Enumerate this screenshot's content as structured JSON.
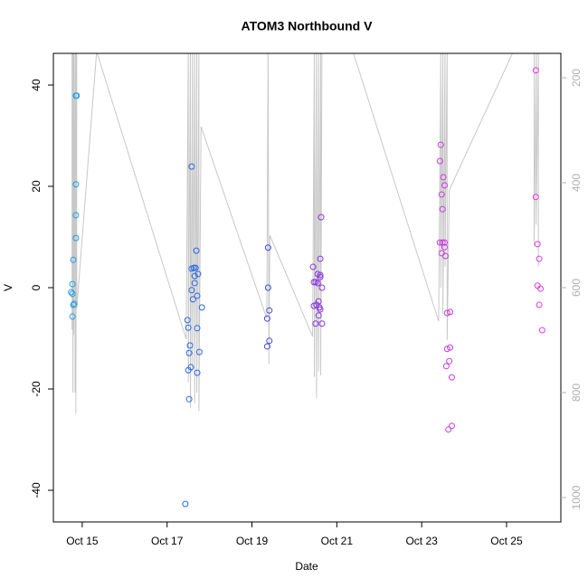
{
  "chart_data": {
    "type": "scatter",
    "title": "ATOM3 Northbound V",
    "xlabel": "Date",
    "ylabel": "V",
    "xlim": [
      14.32,
      26.28
    ],
    "ylim": [
      -46.25,
      46.25
    ],
    "y2lim": [
      1046.5,
      153.5
    ],
    "xticks": [
      {
        "value": 15,
        "label": "Oct 15"
      },
      {
        "value": 17,
        "label": "Oct 17"
      },
      {
        "value": 19,
        "label": "Oct 19"
      },
      {
        "value": 21,
        "label": "Oct 21"
      },
      {
        "value": 23,
        "label": "Oct 23"
      },
      {
        "value": 25,
        "label": "Oct 25"
      }
    ],
    "yticks": [
      -40,
      -20,
      0,
      20,
      40
    ],
    "y2ticks": [
      200,
      400,
      600,
      800,
      1000
    ],
    "series": [
      {
        "type": "line",
        "axis": "y2",
        "color": "#c8c8c8",
        "x": [
          14.76,
          14.76,
          14.78,
          14.78,
          14.8,
          14.8,
          14.83,
          14.83,
          14.85,
          14.85,
          14.87,
          14.87,
          15.34,
          17.45,
          17.5,
          17.5,
          17.55,
          17.55,
          17.6,
          17.6,
          17.65,
          17.65,
          17.7,
          17.7,
          17.75,
          17.75,
          17.8,
          19.35,
          19.38,
          19.4,
          19.42,
          20.43,
          20.47,
          20.47,
          20.52,
          20.52,
          20.57,
          20.57,
          20.62,
          20.62,
          20.65,
          21.38,
          23.4,
          23.45,
          23.45,
          23.5,
          23.5,
          23.55,
          23.55,
          23.6,
          23.6,
          23.65,
          25.16,
          25.65,
          25.65,
          25.7,
          25.7,
          25.75,
          25.75
        ],
        "values": [
          150,
          680,
          150,
          800,
          150,
          690,
          150,
          800,
          150,
          840,
          150,
          640,
          150,
          698,
          150,
          780,
          150,
          830,
          150,
          760,
          150,
          820,
          150,
          800,
          150,
          835,
          293,
          659,
          150,
          745,
          500,
          693,
          150,
          770,
          150,
          810,
          150,
          760,
          150,
          767,
          150,
          150,
          664,
          150,
          600,
          150,
          650,
          150,
          560,
          150,
          700,
          414,
          150,
          150,
          520,
          150,
          480,
          150,
          560
        ]
      },
      {
        "color": "#1ea0e6",
        "x": [
          14.85,
          14.87,
          14.85,
          14.85,
          14.85,
          14.79,
          14.77,
          14.74,
          14.77,
          14.79,
          14.81,
          14.77
        ],
        "values": [
          37.9,
          37.9,
          20.4,
          14.3,
          9.8,
          5.5,
          0.7,
          -0.9,
          -1.2,
          -3.4,
          -3.2,
          -5.7
        ]
      },
      {
        "color": "#2a68e0",
        "x": [
          17.43,
          17.52,
          17.48,
          17.5,
          17.54,
          17.52,
          17.5,
          17.56,
          17.58,
          17.58,
          17.63,
          17.67,
          17.58,
          17.61,
          17.65,
          17.65,
          17.69,
          17.73,
          17.71,
          17.71,
          17.76,
          17.71,
          17.82
        ],
        "values": [
          -42.7,
          -22.0,
          -6.4,
          -7.9,
          -11.4,
          -12.9,
          -16.3,
          -15.7,
          23.9,
          3.75,
          3.9,
          3.9,
          -0.5,
          -2.3,
          2.3,
          0.9,
          7.3,
          2.7,
          -1.6,
          -8.0,
          -12.7,
          -16.8,
          -3.9
        ]
      },
      {
        "color": "#4848e0",
        "x": [
          19.38,
          19.38,
          19.41,
          19.36,
          19.41,
          19.36
        ],
        "values": [
          7.9,
          0,
          -4.5,
          -6.1,
          -10.5,
          -11.6
        ]
      },
      {
        "color": "#8a38e0",
        "x": [
          20.44,
          20.46,
          20.5,
          20.55,
          20.61,
          20.61,
          20.63,
          20.65,
          20.52,
          20.46,
          20.57,
          20.59,
          20.57,
          20.61,
          20.5,
          20.65,
          20.55,
          20.61
        ],
        "values": [
          4.1,
          1.1,
          1.1,
          2.7,
          2.1,
          5.7,
          13.9,
          0,
          -3.4,
          -3.6,
          -2.7,
          -3.9,
          -5.5,
          -4.3,
          -7.1,
          -7.1,
          0.9,
          2.5
        ]
      },
      {
        "color": "#c83ce0",
        "x": [
          23.45,
          23.43,
          23.51,
          23.54,
          23.47,
          23.49,
          23.43,
          23.49,
          23.54,
          23.54,
          23.47,
          23.56,
          23.6,
          23.67,
          23.6,
          23.67,
          23.58,
          23.65,
          23.71,
          23.63,
          23.71
        ],
        "values": [
          28.2,
          25.0,
          21.8,
          20.2,
          18.4,
          15.5,
          8.9,
          8.9,
          8.0,
          8.9,
          6.8,
          6.25,
          -5.0,
          -4.8,
          -12.1,
          -11.8,
          -15.5,
          -14.5,
          -17.7,
          -28.0,
          -27.3
        ]
      },
      {
        "color": "#e03ce0",
        "x": [
          25.69,
          25.69,
          25.73,
          25.77,
          25.73,
          25.8,
          25.77,
          25.84
        ],
        "values": [
          42.9,
          17.9,
          8.6,
          5.7,
          0.4,
          -0.2,
          -3.4,
          -8.4
        ]
      }
    ]
  }
}
